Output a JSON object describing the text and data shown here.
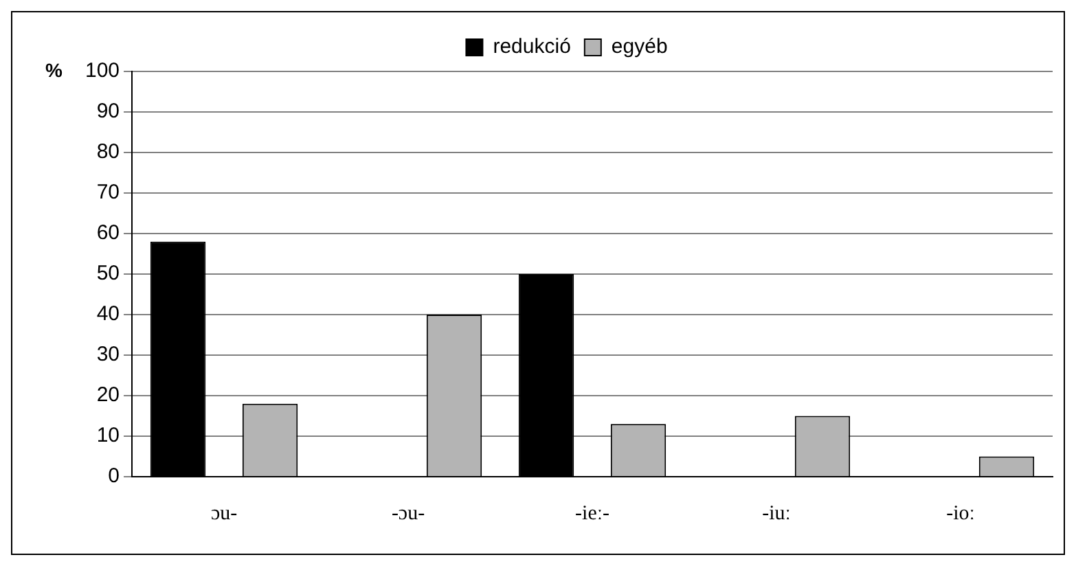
{
  "chart_data": {
    "type": "bar",
    "ylabel": "%",
    "categories": [
      "ɔu-",
      "-ɔu-",
      "-ieː-",
      "-iuː",
      "-ioː"
    ],
    "series": [
      {
        "name": "redukció",
        "color": "#000000",
        "values": [
          58,
          0,
          50,
          0,
          0
        ]
      },
      {
        "name": "egyéb",
        "color": "#b4b4b4",
        "values": [
          18,
          40,
          13,
          15,
          5
        ]
      }
    ],
    "ylim": [
      0,
      100
    ],
    "yticks": [
      0,
      10,
      20,
      30,
      40,
      50,
      60,
      70,
      80,
      90,
      100
    ],
    "grid": "y",
    "legend": "top"
  }
}
